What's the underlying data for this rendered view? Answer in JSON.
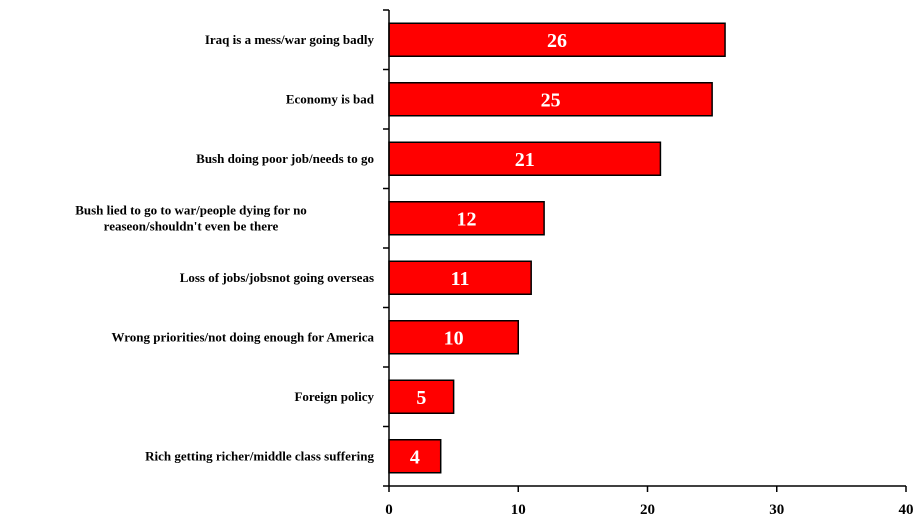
{
  "chart_data": {
    "type": "bar",
    "orientation": "horizontal",
    "categories": [
      [
        "Iraq is a mess/war going badly"
      ],
      [
        "Economy is bad"
      ],
      [
        "Bush doing poor job/needs to go"
      ],
      [
        "Bush lied to go to war/people dying for no",
        "reaseon/shouldn't even be there"
      ],
      [
        "Loss of jobs/jobsnot going overseas"
      ],
      [
        "Wrong priorities/not doing enough for America"
      ],
      [
        "Foreign policy"
      ],
      [
        "Rich getting richer/middle class suffering"
      ]
    ],
    "values": [
      26,
      25,
      21,
      12,
      11,
      10,
      5,
      4
    ],
    "data_labels": [
      "26",
      "25",
      "21",
      "12",
      "11",
      "10",
      "5",
      "4"
    ],
    "xlim": [
      0,
      40
    ],
    "x_ticks": [
      0,
      10,
      20,
      30,
      40
    ],
    "bar_color": "#ff0000",
    "bar_edge_color": "#000000",
    "grid": false,
    "legend": "none",
    "title": "",
    "xlabel": "",
    "ylabel": ""
  }
}
